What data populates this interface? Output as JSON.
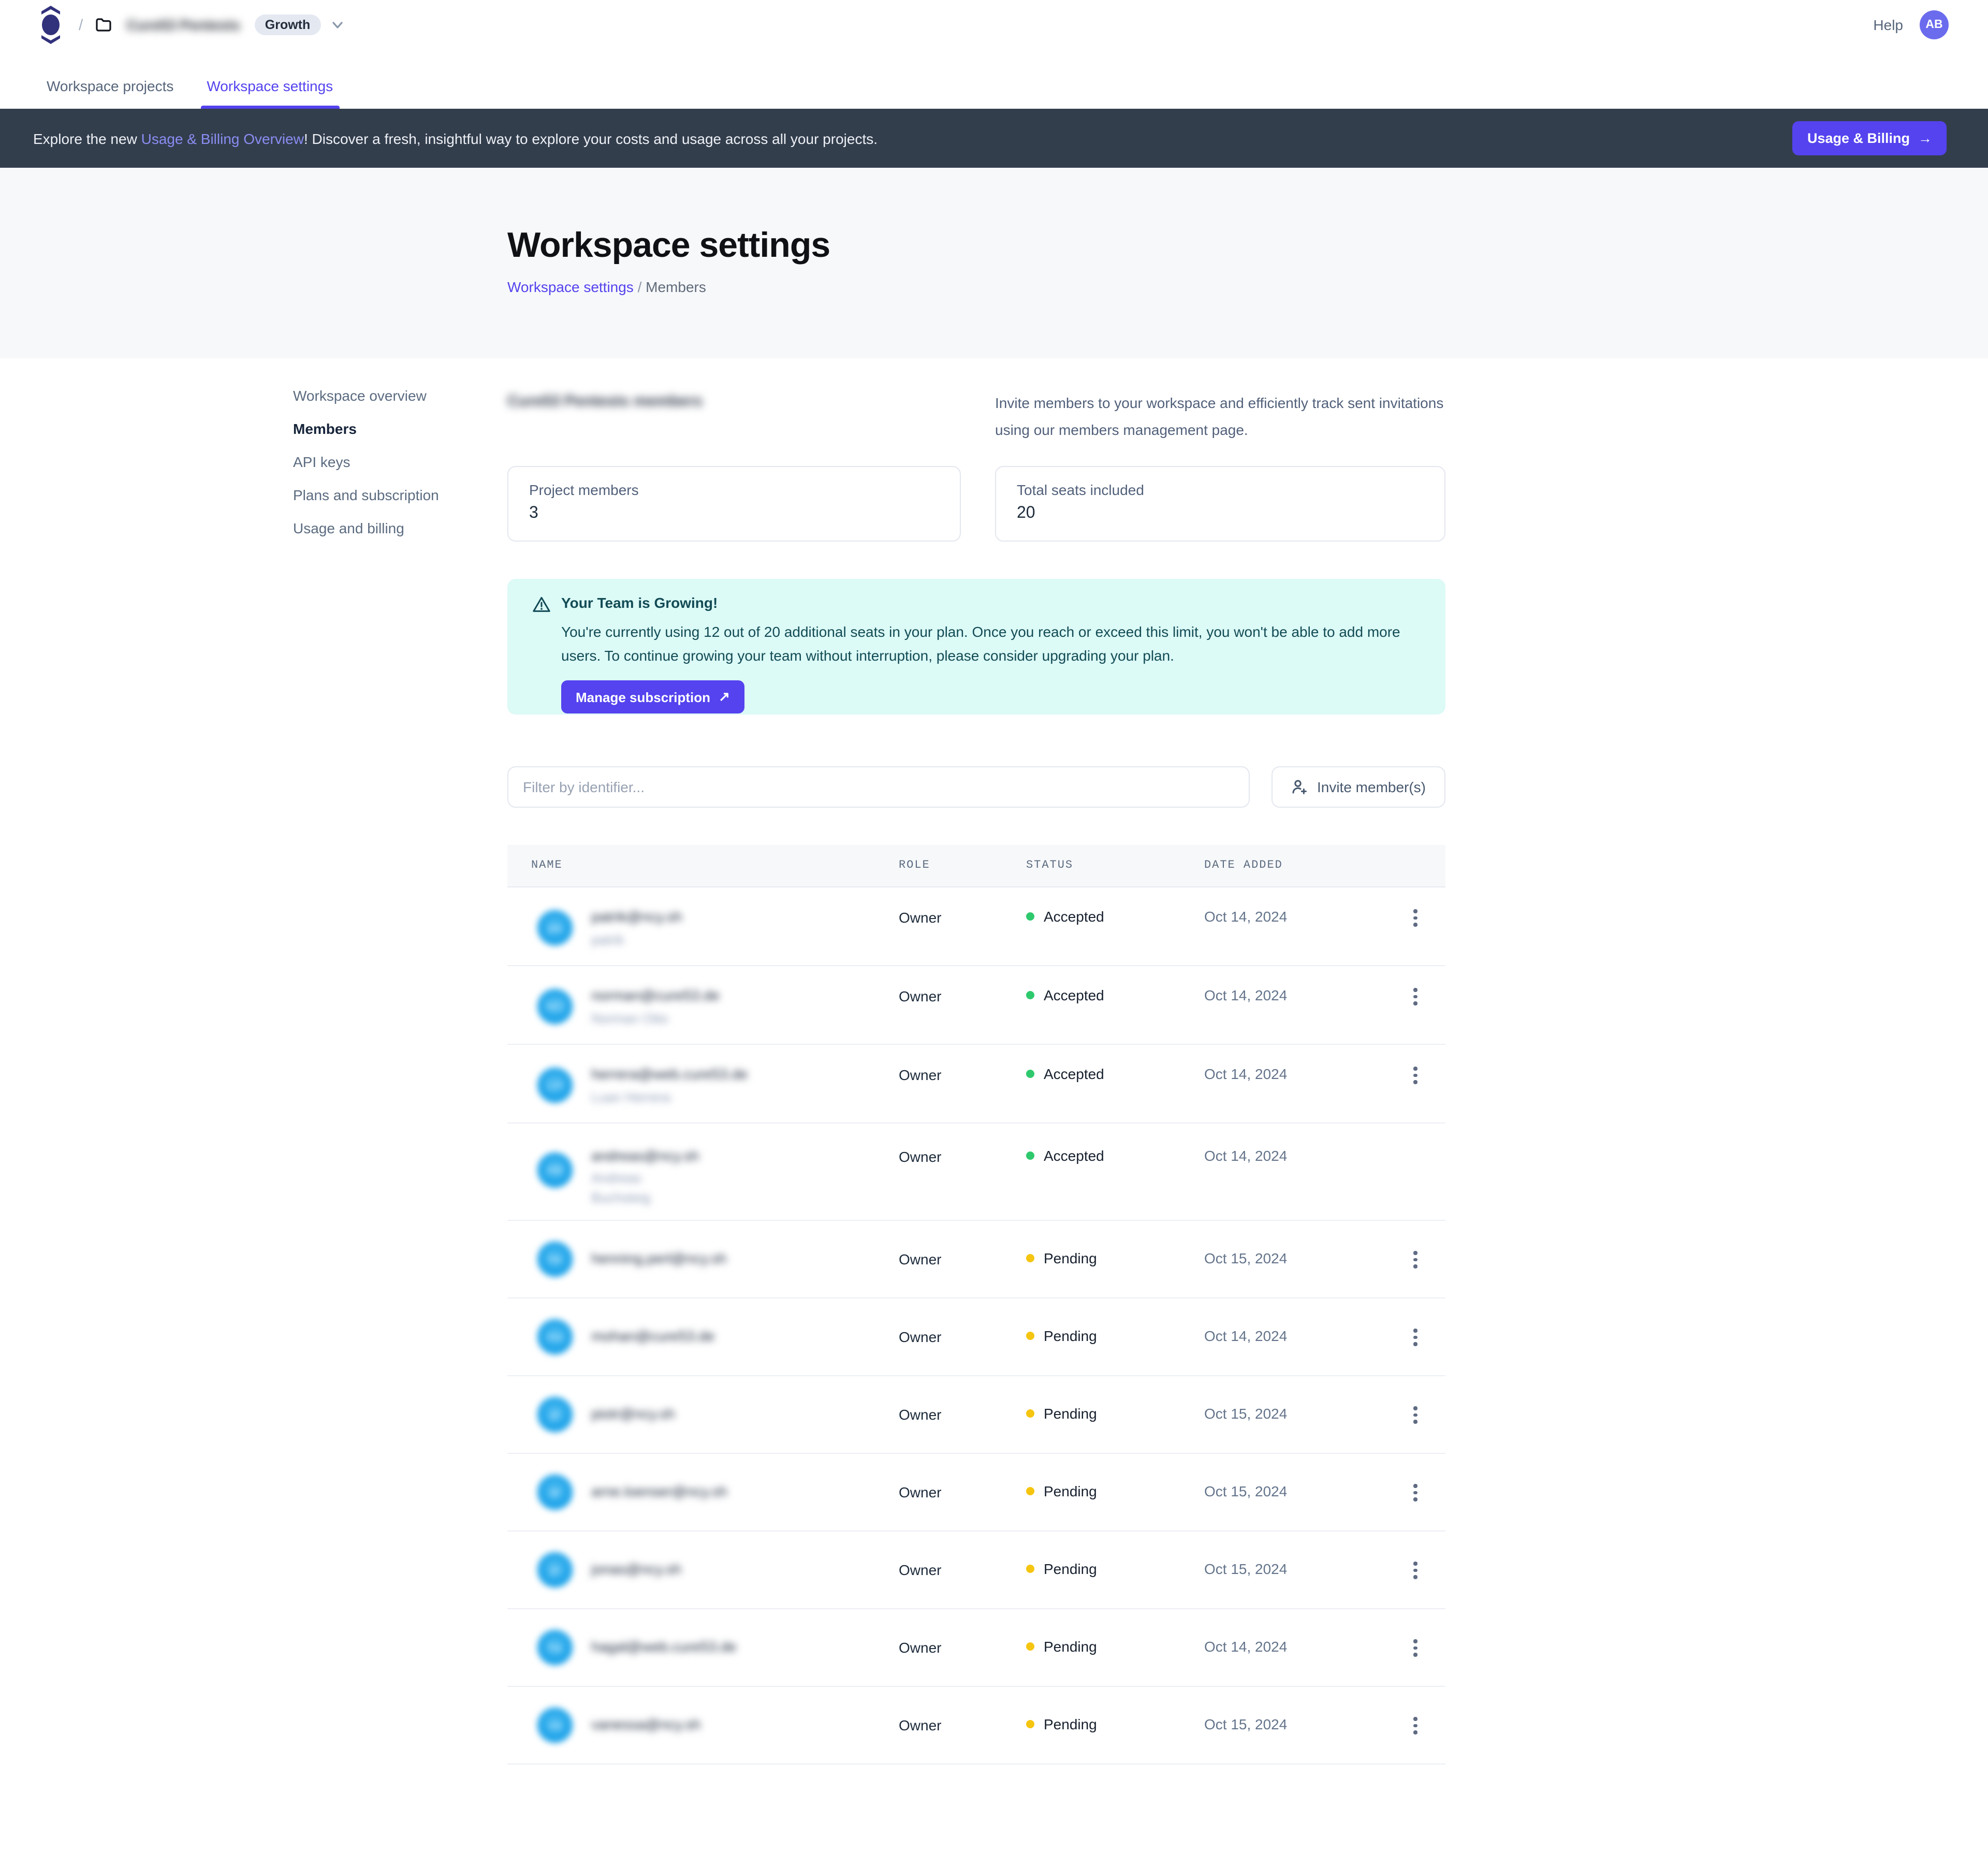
{
  "colors": {
    "accent": "#5443ee",
    "banner_bg": "#333e4d",
    "alert_bg": "#dcfaf6",
    "alert_text": "#124b55",
    "status_accepted": "#2fc96d",
    "status_pending": "#f5c50f",
    "avatar_blue": "#18a0e8"
  },
  "topbar": {
    "breadcrumb_separator": "/",
    "workspace_name": "Cure53 Pentests",
    "plan_badge": "Growth",
    "help_label": "Help",
    "avatar_initials": "AB"
  },
  "tabs": {
    "projects": "Workspace projects",
    "settings": "Workspace settings"
  },
  "banner": {
    "text_before": "Explore the new ",
    "link_text": "Usage & Billing Overview",
    "text_after": "! Discover a fresh, insightful way to explore your costs and usage across all your projects.",
    "button_label": "Usage & Billing",
    "button_arrow": "→"
  },
  "hero": {
    "title": "Workspace settings",
    "breadcrumb_link": "Workspace settings",
    "breadcrumb_separator": "/",
    "breadcrumb_current": "Members"
  },
  "sidebar": {
    "items": [
      {
        "label": "Workspace overview",
        "active": false
      },
      {
        "label": "Members",
        "active": true
      },
      {
        "label": "API keys",
        "active": false
      },
      {
        "label": "Plans and subscription",
        "active": false
      },
      {
        "label": "Usage and billing",
        "active": false
      }
    ]
  },
  "members_section": {
    "title": "Cure53 Pentests members",
    "description": "Invite members to your workspace and efficiently track sent invitations using our members management page.",
    "stats": [
      {
        "label": "Project members",
        "value": "3"
      },
      {
        "label": "Total seats included",
        "value": "20"
      }
    ]
  },
  "alert": {
    "title": "Your Team is Growing!",
    "body": "You're currently using 12 out of 20 additional seats in your plan. Once you reach or exceed this limit, you won't be able to add more users. To continue growing your team without interruption, please consider upgrading your plan.",
    "button_label": "Manage subscription",
    "button_arrow": "↗"
  },
  "toolbar": {
    "filter_placeholder": "Filter by identifier...",
    "invite_label": "Invite member(s)"
  },
  "table": {
    "columns": [
      "NAME",
      "ROLE",
      "STATUS",
      "DATE ADDED"
    ],
    "rows": [
      {
        "email": "patrik@ncy.sh",
        "sub": "patrik",
        "initials": "pa",
        "role": "Owner",
        "status": "Accepted",
        "date": "Oct 14, 2024",
        "has_menu": true,
        "variant": "r-sub"
      },
      {
        "email": "norman@cure53.de",
        "sub": "Norman Otto",
        "initials": "NO",
        "role": "Owner",
        "status": "Accepted",
        "date": "Oct 14, 2024",
        "has_menu": true,
        "variant": "r-sub"
      },
      {
        "email": "herrera@web.cure53.de",
        "sub": "Luan Herrera",
        "initials": "LH",
        "role": "Owner",
        "status": "Accepted",
        "date": "Oct 14, 2024",
        "has_menu": true,
        "variant": "r-sub"
      },
      {
        "email": "andreas@ncy.sh",
        "sub": "Andreas Buchsteig",
        "initials": "AB",
        "role": "Owner",
        "status": "Accepted",
        "date": "Oct 14, 2024",
        "has_menu": false,
        "variant": "r-tall"
      },
      {
        "email": "henning.perl@ncy.sh",
        "sub": "",
        "initials": "he",
        "role": "Owner",
        "status": "Pending",
        "date": "Oct 15, 2024",
        "has_menu": true,
        "variant": "r-plain"
      },
      {
        "email": "mohan@cure53.de",
        "sub": "",
        "initials": "mo",
        "role": "Owner",
        "status": "Pending",
        "date": "Oct 14, 2024",
        "has_menu": true,
        "variant": "r-plain"
      },
      {
        "email": "piotr@ncy.sh",
        "sub": "",
        "initials": "pi",
        "role": "Owner",
        "status": "Pending",
        "date": "Oct 15, 2024",
        "has_menu": true,
        "variant": "r-plain"
      },
      {
        "email": "arne.loenser@ncy.sh",
        "sub": "",
        "initials": "ar",
        "role": "Owner",
        "status": "Pending",
        "date": "Oct 15, 2024",
        "has_menu": true,
        "variant": "r-plain"
      },
      {
        "email": "jonas@ncy.sh",
        "sub": "",
        "initials": "jo",
        "role": "Owner",
        "status": "Pending",
        "date": "Oct 15, 2024",
        "has_menu": true,
        "variant": "r-plain"
      },
      {
        "email": "hagal@web.cure53.de",
        "sub": "",
        "initials": "ha",
        "role": "Owner",
        "status": "Pending",
        "date": "Oct 14, 2024",
        "has_menu": true,
        "variant": "r-plain"
      },
      {
        "email": "vanessa@ncy.sh",
        "sub": "",
        "initials": "va",
        "role": "Owner",
        "status": "Pending",
        "date": "Oct 15, 2024",
        "has_menu": true,
        "variant": "r-plain"
      }
    ]
  }
}
